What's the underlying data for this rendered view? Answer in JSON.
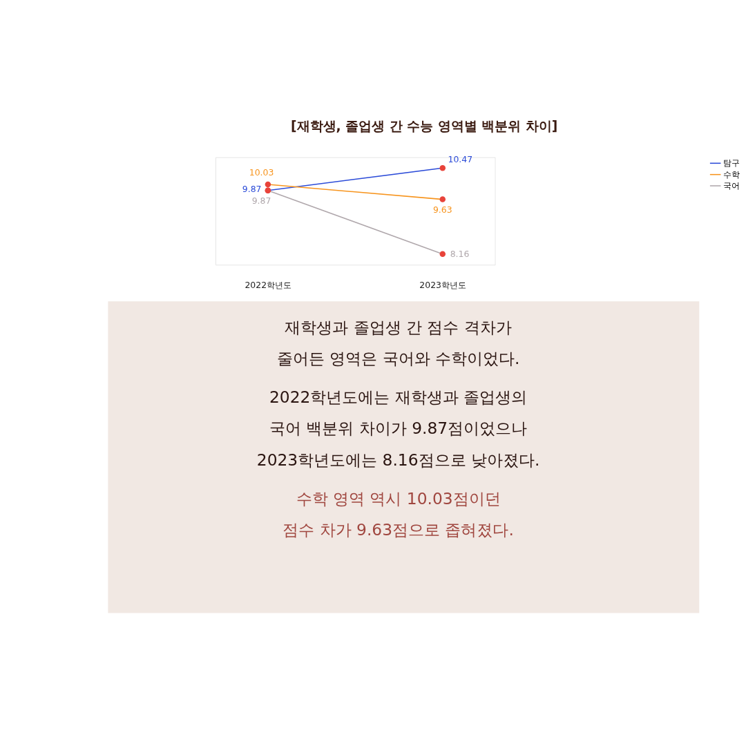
{
  "chart_data": {
    "type": "line",
    "title": "[재학생, 졸업생 간 수능 영역별 백분위 차이]",
    "categories": [
      "2022학년도",
      "2023학년도"
    ],
    "series": [
      {
        "name": "탐구",
        "color": "#2b4bd8",
        "values": [
          9.87,
          10.47
        ]
      },
      {
        "name": "수학",
        "color": "#f7941d",
        "values": [
          10.03,
          9.63
        ]
      },
      {
        "name": "국어",
        "color": "#b0a8ac",
        "values": [
          9.87,
          8.16
        ]
      }
    ],
    "data_labels": true,
    "marker": "circle",
    "line_style": "solid",
    "legend": "right",
    "grid": false,
    "tick_labels": "x",
    "annotations": [
      "재학생과 졸업생 간 점수 격차가",
      "줄어든 영역은 국어와 수학이었다.",
      "2022학년도에는 재학생과 졸업생의",
      "국어 백분위 차이가 9.87점이었으나",
      "2023학년도에는 8.16점으로 낮아졌다.",
      "수학 영역 역시 10.03점이던",
      "점수 차가 9.63점으로 좁혀졌다."
    ]
  }
}
